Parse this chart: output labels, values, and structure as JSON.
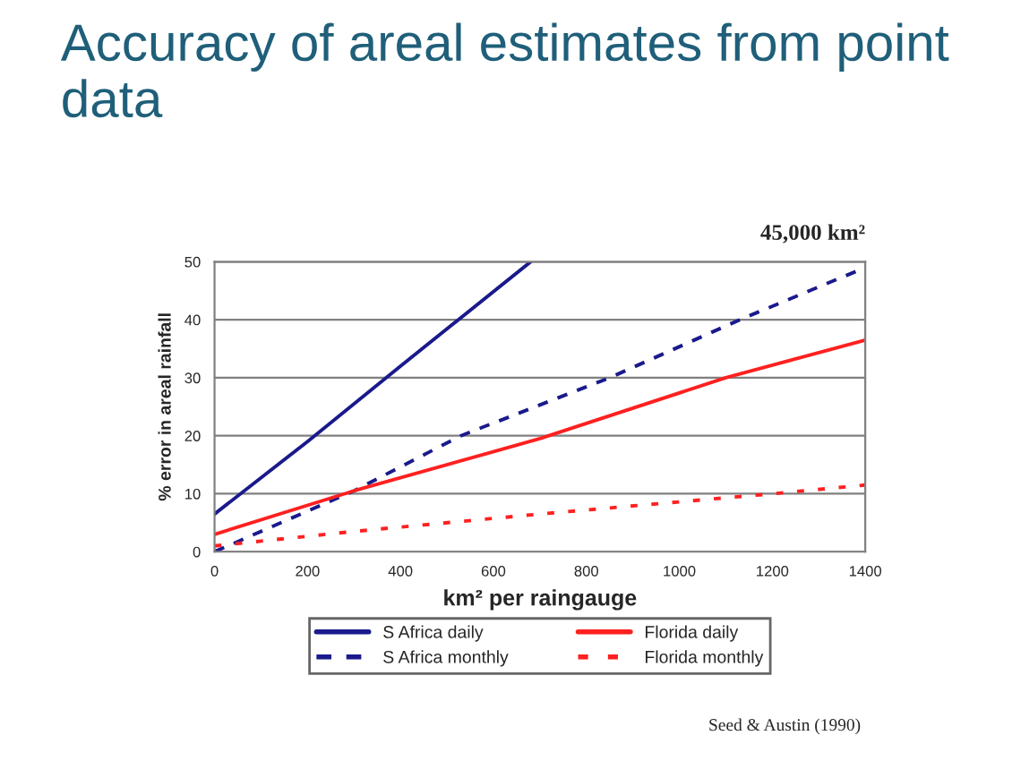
{
  "chart_data": {
    "type": "line",
    "title": "Accuracy of areal estimates from point data",
    "xlabel": "km² per raingauge",
    "ylabel": "% error in areal rainfall",
    "annotations": [
      "45,000 km²",
      "Seed & Austin (1990)"
    ],
    "xlim": [
      0,
      1400
    ],
    "xticks": [
      0,
      200,
      400,
      600,
      800,
      1000,
      1200,
      1400
    ],
    "ylim": [
      0,
      50
    ],
    "yticks": [
      0,
      10,
      20,
      30,
      40,
      50
    ],
    "grid": "y",
    "legend": "bottom",
    "marker": "none",
    "series": [
      {
        "name": "S Africa daily",
        "color": "#1a1a8c",
        "line_style": "solid",
        "x": [
          0,
          200,
          400,
          680
        ],
        "values": [
          6.5,
          19,
          32,
          50
        ]
      },
      {
        "name": "S Africa monthly",
        "color": "#1a1a8c",
        "line_style": "dashed",
        "x": [
          0,
          300,
          530,
          850,
          1130,
          1400
        ],
        "values": [
          0,
          10.5,
          20,
          30,
          40,
          49
        ]
      },
      {
        "name": "Florida daily",
        "color": "#ff2020",
        "line_style": "solid",
        "x": [
          0,
          300,
          700,
          1100,
          1400
        ],
        "values": [
          3,
          10.5,
          19.5,
          30,
          36.5
        ]
      },
      {
        "name": "Florida monthly",
        "color": "#ff2020",
        "line_style": "dotted",
        "x": [
          0,
          300,
          700,
          1200,
          1400
        ],
        "values": [
          1,
          3.5,
          6.5,
          10,
          11.5
        ]
      }
    ]
  }
}
